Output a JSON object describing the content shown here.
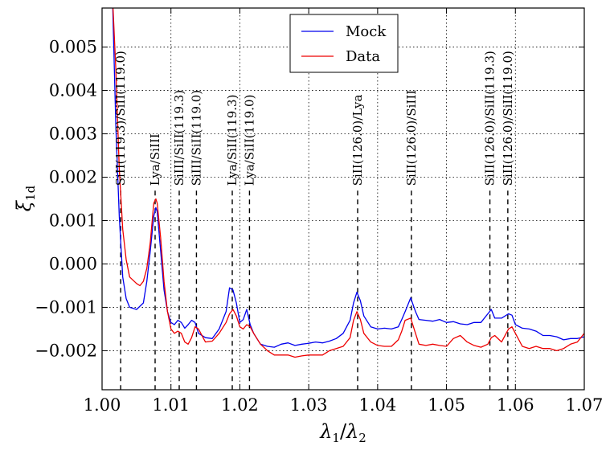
{
  "chart_data": {
    "type": "line",
    "xlabel": "λ1/λ2",
    "ylabel": "ξ1d",
    "xlim": [
      1.0,
      1.07
    ],
    "ylim": [
      -0.0029,
      0.0059
    ],
    "grid": true,
    "legend_position": "top-center",
    "x_ticks": [
      1.0,
      1.01,
      1.02,
      1.03,
      1.04,
      1.05,
      1.06,
      1.07
    ],
    "x_tick_labels": [
      "1.00",
      "1.01",
      "1.02",
      "1.03",
      "1.04",
      "1.05",
      "1.06",
      "1.07"
    ],
    "y_ticks": [
      0.005,
      0.004,
      0.003,
      0.002,
      0.001,
      0.0,
      -0.001,
      -0.002
    ],
    "y_tick_labels": [
      "0.005",
      "0.004",
      "0.003",
      "0.002",
      "0.001",
      "0.000",
      "−0.001",
      "−0.002"
    ],
    "series": [
      {
        "name": "Mock",
        "color": "#0000ee",
        "x": [
          1.0015,
          1.002,
          1.0025,
          1.003,
          1.0035,
          1.004,
          1.005,
          1.006,
          1.0065,
          1.007,
          1.0075,
          1.0078,
          1.008,
          1.0085,
          1.009,
          1.0095,
          1.01,
          1.0105,
          1.011,
          1.0115,
          1.012,
          1.0125,
          1.013,
          1.0135,
          1.014,
          1.015,
          1.016,
          1.017,
          1.018,
          1.0185,
          1.019,
          1.0195,
          1.02,
          1.0205,
          1.021,
          1.0215,
          1.022,
          1.023,
          1.024,
          1.025,
          1.026,
          1.027,
          1.028,
          1.029,
          1.03,
          1.031,
          1.032,
          1.033,
          1.034,
          1.035,
          1.036,
          1.0365,
          1.037,
          1.0375,
          1.038,
          1.039,
          1.04,
          1.041,
          1.042,
          1.043,
          1.0435,
          1.044,
          1.0448,
          1.0455,
          1.046,
          1.047,
          1.048,
          1.049,
          1.05,
          1.051,
          1.052,
          1.053,
          1.054,
          1.055,
          1.056,
          1.0565,
          1.057,
          1.058,
          1.059,
          1.0595,
          1.06,
          1.061,
          1.062,
          1.063,
          1.064,
          1.065,
          1.066,
          1.067,
          1.068,
          1.069,
          1.07
        ],
        "y": [
          0.0062,
          0.0032,
          0.0011,
          -0.0003,
          -0.0008,
          -0.001,
          -0.00105,
          -0.0009,
          -0.0004,
          0.0003,
          0.0011,
          0.0013,
          0.0012,
          0.0003,
          -0.0006,
          -0.0011,
          -0.00135,
          -0.0014,
          -0.0013,
          -0.00135,
          -0.00148,
          -0.0014,
          -0.0013,
          -0.00135,
          -0.0016,
          -0.0017,
          -0.00172,
          -0.0015,
          -0.0011,
          -0.00055,
          -0.0006,
          -0.0009,
          -0.00135,
          -0.00128,
          -0.00105,
          -0.0014,
          -0.0016,
          -0.00185,
          -0.0019,
          -0.00192,
          -0.00185,
          -0.00182,
          -0.00188,
          -0.00185,
          -0.00183,
          -0.0018,
          -0.00182,
          -0.00178,
          -0.00172,
          -0.0016,
          -0.0013,
          -0.0009,
          -0.00065,
          -0.00085,
          -0.0012,
          -0.00145,
          -0.0015,
          -0.00148,
          -0.0015,
          -0.00145,
          -0.00128,
          -0.0011,
          -0.00078,
          -0.0011,
          -0.00128,
          -0.0013,
          -0.00132,
          -0.00128,
          -0.00135,
          -0.00133,
          -0.00138,
          -0.0014,
          -0.00135,
          -0.00135,
          -0.00115,
          -0.00105,
          -0.00125,
          -0.00125,
          -0.00115,
          -0.00118,
          -0.0014,
          -0.00148,
          -0.0015,
          -0.00155,
          -0.00165,
          -0.00165,
          -0.00168,
          -0.00175,
          -0.00172,
          -0.00172,
          -0.00168
        ]
      },
      {
        "name": "Data",
        "color": "#ee0000",
        "x": [
          1.0015,
          1.002,
          1.0025,
          1.003,
          1.0035,
          1.004,
          1.005,
          1.0055,
          1.006,
          1.0065,
          1.007,
          1.0075,
          1.0078,
          1.008,
          1.0085,
          1.009,
          1.0095,
          1.01,
          1.0105,
          1.011,
          1.0115,
          1.012,
          1.0125,
          1.013,
          1.0135,
          1.014,
          1.015,
          1.016,
          1.017,
          1.018,
          1.0185,
          1.019,
          1.0195,
          1.02,
          1.0205,
          1.021,
          1.0215,
          1.022,
          1.023,
          1.024,
          1.025,
          1.026,
          1.027,
          1.028,
          1.029,
          1.03,
          1.031,
          1.032,
          1.033,
          1.034,
          1.035,
          1.036,
          1.0365,
          1.037,
          1.0375,
          1.038,
          1.039,
          1.04,
          1.041,
          1.042,
          1.043,
          1.0435,
          1.044,
          1.0448,
          1.0455,
          1.046,
          1.047,
          1.048,
          1.049,
          1.05,
          1.051,
          1.052,
          1.053,
          1.054,
          1.055,
          1.056,
          1.0565,
          1.057,
          1.058,
          1.059,
          1.0595,
          1.06,
          1.061,
          1.062,
          1.063,
          1.064,
          1.065,
          1.066,
          1.067,
          1.068,
          1.069,
          1.07
        ],
        "y": [
          0.0062,
          0.0045,
          0.0022,
          0.0008,
          0.0001,
          -0.0003,
          -0.00045,
          -0.0005,
          -0.0004,
          -0.0001,
          0.0005,
          0.0014,
          0.0015,
          0.0014,
          0.0006,
          -0.0004,
          -0.0011,
          -0.0015,
          -0.0016,
          -0.00155,
          -0.0016,
          -0.0018,
          -0.00185,
          -0.0017,
          -0.00145,
          -0.0015,
          -0.0018,
          -0.00178,
          -0.0016,
          -0.00135,
          -0.00115,
          -0.00105,
          -0.0012,
          -0.00145,
          -0.0015,
          -0.0014,
          -0.00145,
          -0.0016,
          -0.00185,
          -0.002,
          -0.0021,
          -0.0021,
          -0.0021,
          -0.00215,
          -0.00212,
          -0.0021,
          -0.0021,
          -0.0021,
          -0.002,
          -0.00195,
          -0.0019,
          -0.0017,
          -0.0013,
          -0.0011,
          -0.00128,
          -0.0016,
          -0.0018,
          -0.00188,
          -0.0019,
          -0.0019,
          -0.00175,
          -0.00155,
          -0.0013,
          -0.00125,
          -0.0016,
          -0.00185,
          -0.00188,
          -0.00185,
          -0.00188,
          -0.0019,
          -0.00172,
          -0.00165,
          -0.0018,
          -0.00188,
          -0.00192,
          -0.00185,
          -0.0017,
          -0.00165,
          -0.0018,
          -0.0015,
          -0.00145,
          -0.0016,
          -0.0019,
          -0.00195,
          -0.0019,
          -0.00195,
          -0.00195,
          -0.002,
          -0.00195,
          -0.00185,
          -0.0018,
          -0.0016
        ]
      }
    ],
    "annotations": [
      {
        "x": 1.0027,
        "label": "SiII(119.3)/SiII(119.0)"
      },
      {
        "x": 1.0077,
        "label": "Lya/SiIII"
      },
      {
        "x": 1.0112,
        "label": "SiIII/SiII(119.3)"
      },
      {
        "x": 1.0137,
        "label": "SiIII/SiII(119.0)"
      },
      {
        "x": 1.0189,
        "label": "Lya/SiII(119.3)"
      },
      {
        "x": 1.0214,
        "label": "Lya/SiII(119.0)"
      },
      {
        "x": 1.0371,
        "label": "SiII(126.0)/Lya"
      },
      {
        "x": 1.0449,
        "label": "SiII(126.0)/SiIII"
      },
      {
        "x": 1.0563,
        "label": "SiII(126.0)/SiII(119.3)"
      },
      {
        "x": 1.0589,
        "label": "SiII(126.0)/SiII(119.0)"
      }
    ]
  }
}
